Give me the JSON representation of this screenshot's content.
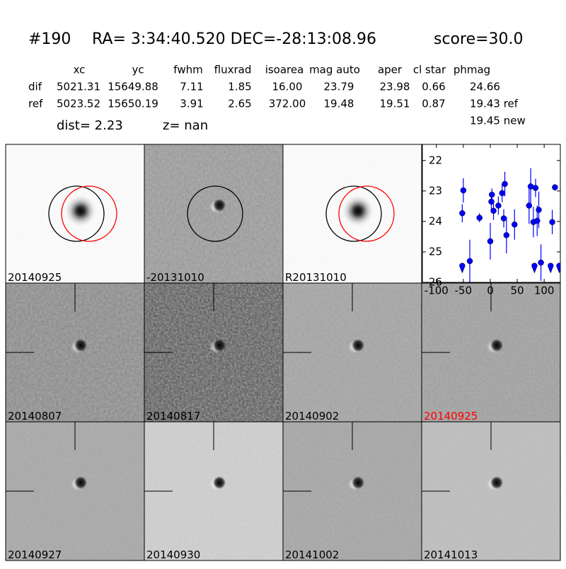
{
  "header": {
    "id": "#190",
    "coords": "RA= 3:34:40.520 DEC=-28:13:08.96",
    "score": "score=30.0"
  },
  "table": {
    "columns": [
      "xc",
      "yc",
      "fwhm",
      "fluxrad",
      "isoarea",
      "mag auto",
      "aper",
      "cl star",
      "phmag"
    ],
    "rows": [
      {
        "label": "dif",
        "cells": [
          "5021.31",
          "15649.88",
          "7.11",
          "1.85",
          "16.00",
          "23.79",
          "23.98",
          "0.66",
          "24.66"
        ]
      },
      {
        "label": "ref",
        "cells": [
          "5023.52",
          "15650.19",
          "3.91",
          "2.65",
          "372.00",
          "19.48",
          "19.51",
          "0.87",
          "19.43 ref"
        ]
      }
    ],
    "extra": "19.45 new"
  },
  "info": {
    "dist": "dist=  2.23",
    "z": "z=   nan"
  },
  "panels": [
    {
      "label": "20140925",
      "color": "#000000"
    },
    {
      "label": "-20131010",
      "color": "#000000"
    },
    {
      "label": "R20131010",
      "color": "#000000"
    },
    {
      "label": "20140807",
      "color": "#000000"
    },
    {
      "label": "20140817",
      "color": "#000000"
    },
    {
      "label": "20140902",
      "color": "#000000"
    },
    {
      "label": "20140925",
      "color": "#ff0000"
    },
    {
      "label": "20140927",
      "color": "#000000"
    },
    {
      "label": "20140930",
      "color": "#000000"
    },
    {
      "label": "20141002",
      "color": "#000000"
    },
    {
      "label": "20141013",
      "color": "#000000"
    }
  ],
  "chart_data": {
    "type": "scatter",
    "xlim": [
      -126,
      130
    ],
    "xticks": [
      -100,
      -50,
      0,
      50,
      100
    ],
    "ylim": [
      21.47,
      26
    ],
    "yticks": [
      22,
      23,
      24,
      25,
      26
    ],
    "y_inverted": true,
    "series": [
      {
        "color": "#0000ff",
        "marker": "circle",
        "x": [
          -52,
          -50,
          -38,
          -20,
          0,
          2,
          3,
          6,
          15,
          22,
          25,
          27,
          30,
          45,
          72,
          75,
          80,
          84,
          87,
          90,
          94,
          115,
          120
        ],
        "values": [
          23.73,
          22.98,
          25.3,
          23.88,
          24.65,
          23.35,
          23.12,
          23.65,
          23.48,
          23.07,
          23.9,
          22.77,
          24.45,
          24.1,
          23.48,
          22.85,
          24.02,
          22.9,
          23.98,
          23.62,
          25.35,
          24.02,
          22.88
        ],
        "errors": [
          0.3,
          0.4,
          0.7,
          0.15,
          0.6,
          0.3,
          0.2,
          0.3,
          0.3,
          0.3,
          0.3,
          0.4,
          0.6,
          0.5,
          0.6,
          0.6,
          0.5,
          0.3,
          0.5,
          0.6,
          0.6,
          0.4,
          0.1
        ]
      },
      {
        "color": "#0000ff",
        "marker": "limit",
        "x": [
          -52,
          82,
          112,
          128
        ],
        "values": [
          25.55,
          25.55,
          25.55,
          25.55
        ]
      }
    ]
  }
}
